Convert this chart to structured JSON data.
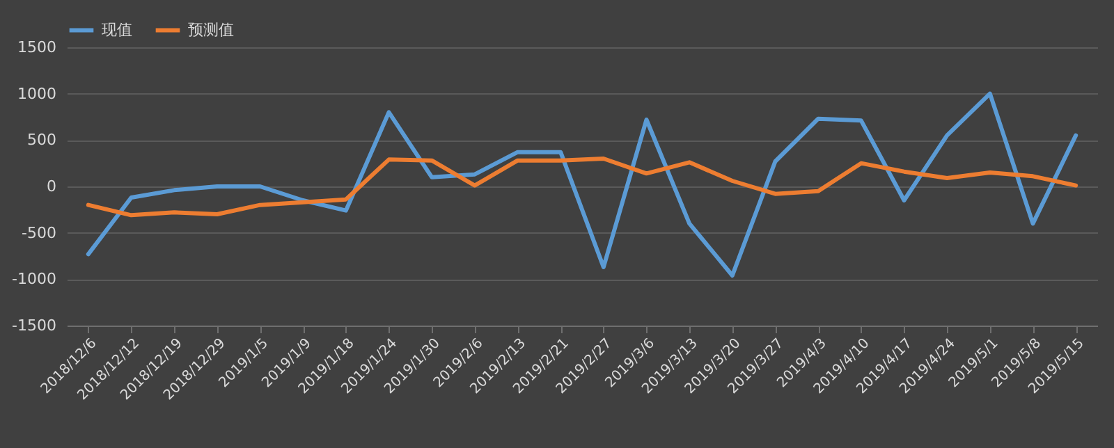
{
  "chart_data": {
    "type": "line",
    "categories": [
      "2018/12/6",
      "2018/12/12",
      "2018/12/19",
      "2018/12/29",
      "2019/1/5",
      "2019/1/9",
      "2019/1/18",
      "2019/1/24",
      "2019/1/30",
      "2019/2/6",
      "2019/2/13",
      "2019/2/21",
      "2019/2/27",
      "2019/3/6",
      "2019/3/13",
      "2019/3/20",
      "2019/3/27",
      "2019/4/3",
      "2019/4/10",
      "2019/4/17",
      "2019/4/24",
      "2019/5/1",
      "2019/5/8",
      "2019/5/15"
    ],
    "series": [
      {
        "name": "现值",
        "color": "#5b9bd5",
        "values": [
          -730,
          -120,
          -40,
          0,
          0,
          -150,
          -260,
          800,
          100,
          130,
          370,
          370,
          -870,
          720,
          -400,
          -960,
          270,
          730,
          710,
          -150,
          550,
          1000,
          -400,
          550
        ]
      },
      {
        "name": "预测值",
        "color": "#ed7d31",
        "values": [
          -200,
          -310,
          -280,
          -300,
          -200,
          -170,
          -140,
          290,
          280,
          10,
          280,
          280,
          300,
          140,
          260,
          60,
          -80,
          -50,
          250,
          160,
          90,
          150,
          110,
          10
        ]
      }
    ],
    "ylim": [
      -1500,
      1500
    ],
    "yticks": [
      -1500,
      -1000,
      -500,
      0,
      500,
      1000,
      1500
    ],
    "grid": "y",
    "legend": "top",
    "marker": "none",
    "line_style": "solid"
  }
}
